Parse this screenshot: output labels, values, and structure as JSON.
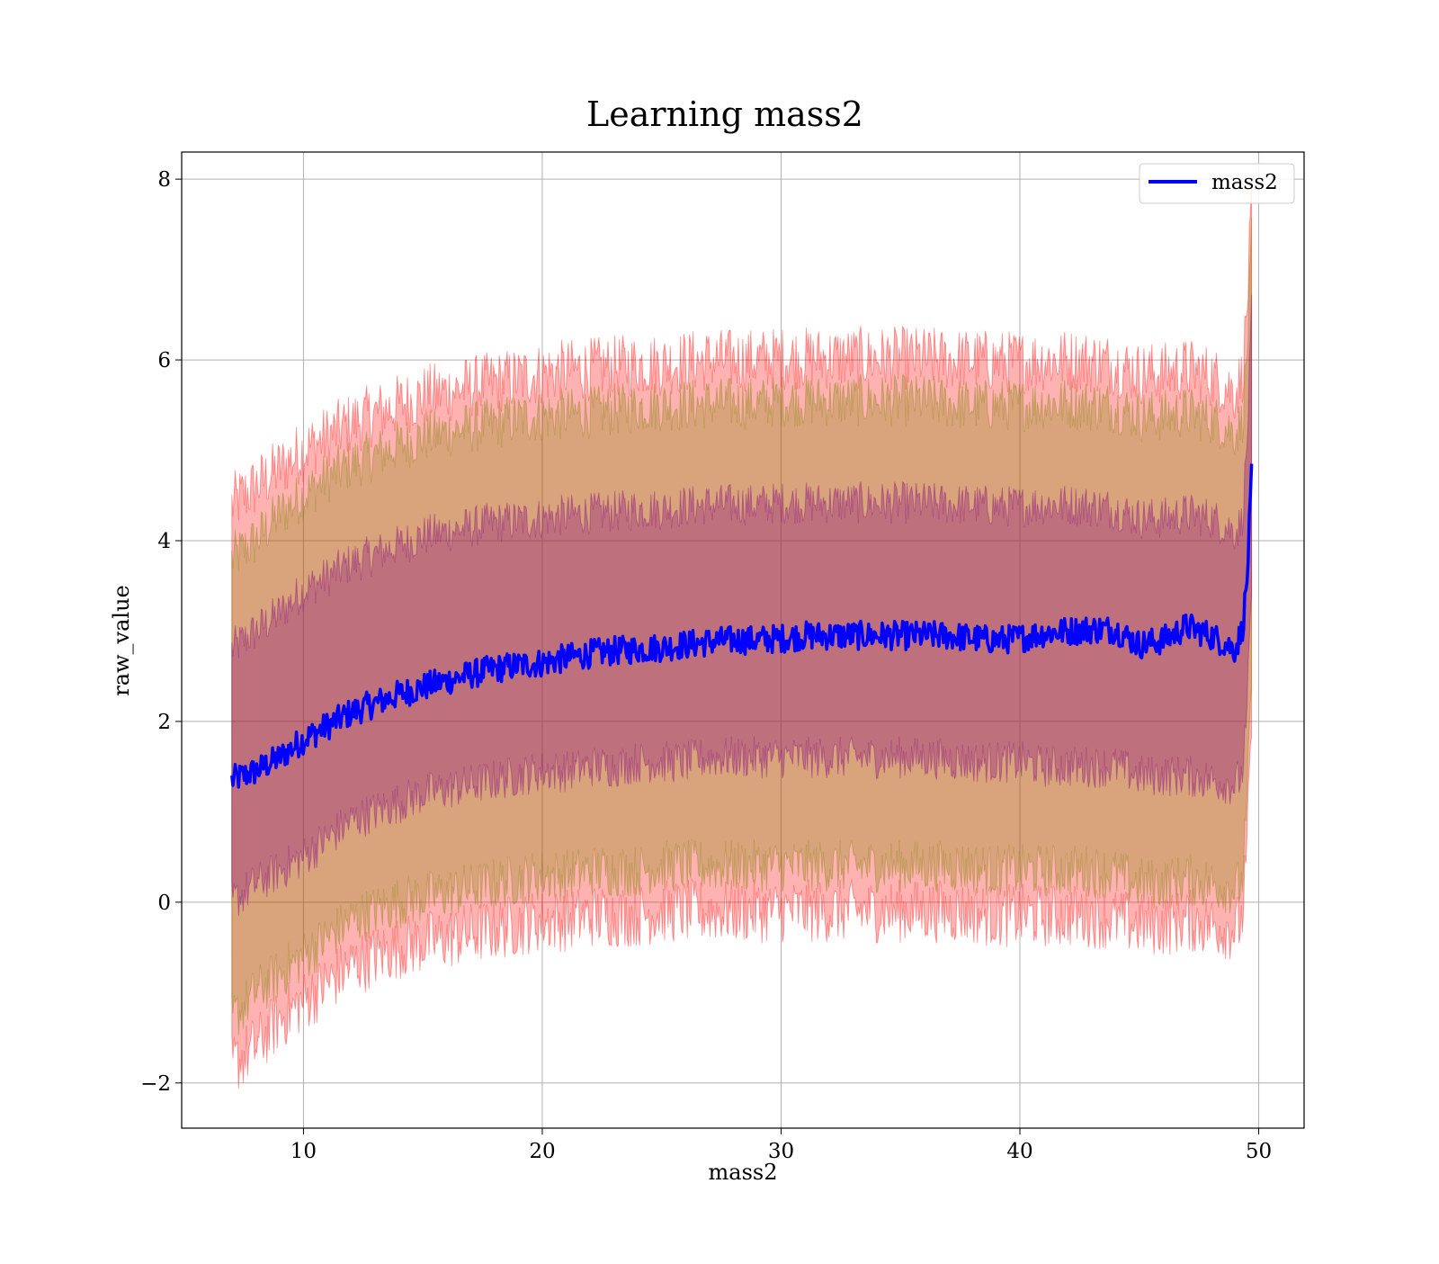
{
  "chart_data": {
    "type": "line",
    "title": "Learning mass2",
    "xlabel": "mass2",
    "ylabel": "raw_value",
    "xlim": [
      4.9,
      51.9
    ],
    "ylim": [
      -2.5,
      8.3
    ],
    "xticks": [
      10,
      20,
      30,
      40,
      50
    ],
    "yticks": [
      -2,
      0,
      2,
      4,
      6,
      8
    ],
    "xtick_labels": [
      "10",
      "20",
      "30",
      "40",
      "50"
    ],
    "ytick_labels": [
      "−2",
      "0",
      "2",
      "4",
      "6",
      "8"
    ],
    "grid": true,
    "legend": {
      "position": "top-right"
    },
    "series": [
      {
        "name": "mass2",
        "color": "#0000ff",
        "x": [
          7.0,
          8.0,
          9.0,
          10.0,
          11.0,
          12.0,
          13.0,
          14.0,
          15.0,
          16.0,
          17.0,
          18.0,
          19.0,
          20.0,
          21.0,
          22.0,
          23.0,
          24.0,
          25.0,
          26.0,
          27.0,
          28.0,
          29.0,
          30.0,
          31.0,
          32.0,
          33.0,
          34.0,
          35.0,
          36.0,
          37.0,
          38.0,
          39.0,
          40.0,
          41.0,
          42.0,
          43.0,
          44.0,
          45.0,
          46.0,
          47.0,
          48.0,
          49.0,
          49.3,
          49.5,
          49.7
        ],
        "y": [
          1.35,
          1.45,
          1.6,
          1.8,
          1.95,
          2.1,
          2.2,
          2.3,
          2.38,
          2.45,
          2.52,
          2.58,
          2.62,
          2.65,
          2.7,
          2.75,
          2.78,
          2.8,
          2.82,
          2.85,
          2.88,
          2.9,
          2.9,
          2.92,
          2.95,
          2.95,
          2.95,
          2.95,
          2.95,
          2.95,
          2.95,
          2.92,
          2.9,
          2.92,
          2.98,
          3.0,
          3.02,
          3.02,
          2.85,
          2.9,
          3.05,
          2.95,
          2.8,
          3.0,
          3.5,
          4.7
        ]
      }
    ],
    "bands": [
      {
        "sigma": 1,
        "color": "#800080",
        "lower": [
          0.0,
          0.2,
          0.35,
          0.5,
          0.7,
          0.9,
          1.0,
          1.1,
          1.2,
          1.25,
          1.3,
          1.35,
          1.4,
          1.45,
          1.45,
          1.5,
          1.5,
          1.55,
          1.55,
          1.55,
          1.6,
          1.6,
          1.6,
          1.6,
          1.6,
          1.6,
          1.6,
          1.6,
          1.6,
          1.6,
          1.58,
          1.55,
          1.55,
          1.55,
          1.5,
          1.5,
          1.5,
          1.5,
          1.4,
          1.4,
          1.4,
          1.35,
          1.3,
          1.4,
          2.0,
          3.5
        ],
        "upper": [
          2.8,
          3.0,
          3.2,
          3.45,
          3.6,
          3.75,
          3.85,
          3.95,
          4.05,
          4.1,
          4.15,
          4.2,
          4.22,
          4.25,
          4.28,
          4.3,
          4.32,
          4.35,
          4.35,
          4.38,
          4.4,
          4.4,
          4.4,
          4.42,
          4.42,
          4.42,
          4.42,
          4.42,
          4.42,
          4.42,
          4.4,
          4.4,
          4.38,
          4.38,
          4.4,
          4.4,
          4.38,
          4.35,
          4.25,
          4.25,
          4.3,
          4.25,
          4.1,
          4.2,
          5.0,
          6.5
        ]
      },
      {
        "sigma": 2,
        "color": "#808000",
        "lower": [
          -1.3,
          -1.0,
          -0.8,
          -0.6,
          -0.4,
          -0.2,
          -0.1,
          0.0,
          0.05,
          0.1,
          0.15,
          0.2,
          0.25,
          0.3,
          0.3,
          0.35,
          0.35,
          0.35,
          0.4,
          0.4,
          0.4,
          0.4,
          0.4,
          0.4,
          0.4,
          0.4,
          0.4,
          0.4,
          0.4,
          0.4,
          0.4,
          0.38,
          0.35,
          0.35,
          0.35,
          0.35,
          0.35,
          0.3,
          0.2,
          0.2,
          0.25,
          0.2,
          0.15,
          0.2,
          1.0,
          2.5
        ],
        "upper": [
          3.8,
          4.0,
          4.3,
          4.5,
          4.7,
          4.85,
          4.95,
          5.05,
          5.15,
          5.2,
          5.25,
          5.3,
          5.35,
          5.38,
          5.4,
          5.42,
          5.45,
          5.48,
          5.5,
          5.5,
          5.52,
          5.52,
          5.52,
          5.55,
          5.55,
          5.55,
          5.55,
          5.55,
          5.55,
          5.55,
          5.52,
          5.5,
          5.5,
          5.5,
          5.52,
          5.52,
          5.5,
          5.48,
          5.38,
          5.38,
          5.42,
          5.35,
          5.2,
          5.3,
          6.0,
          7.3
        ]
      },
      {
        "sigma": 3,
        "color": "#ff0000",
        "lower": [
          -1.8,
          -1.6,
          -1.3,
          -1.1,
          -0.9,
          -0.7,
          -0.6,
          -0.5,
          -0.45,
          -0.4,
          -0.35,
          -0.3,
          -0.25,
          -0.2,
          -0.2,
          -0.15,
          -0.15,
          -0.15,
          -0.1,
          -0.1,
          -0.1,
          -0.1,
          -0.1,
          -0.1,
          -0.1,
          -0.1,
          -0.1,
          -0.1,
          -0.1,
          -0.1,
          -0.1,
          -0.12,
          -0.15,
          -0.15,
          -0.15,
          -0.15,
          -0.15,
          -0.2,
          -0.25,
          -0.25,
          -0.2,
          -0.25,
          -0.3,
          -0.2,
          0.5,
          2.0
        ],
        "upper": [
          4.4,
          4.6,
          4.8,
          5.0,
          5.15,
          5.3,
          5.4,
          5.5,
          5.6,
          5.65,
          5.7,
          5.75,
          5.8,
          5.85,
          5.88,
          5.9,
          5.92,
          5.95,
          5.95,
          5.98,
          6.0,
          6.0,
          6.0,
          6.02,
          6.02,
          6.02,
          6.02,
          6.02,
          6.02,
          6.02,
          6.0,
          6.0,
          5.98,
          5.98,
          6.0,
          6.0,
          5.98,
          5.95,
          5.85,
          5.85,
          5.9,
          5.82,
          5.65,
          5.8,
          6.5,
          7.7
        ]
      }
    ]
  }
}
